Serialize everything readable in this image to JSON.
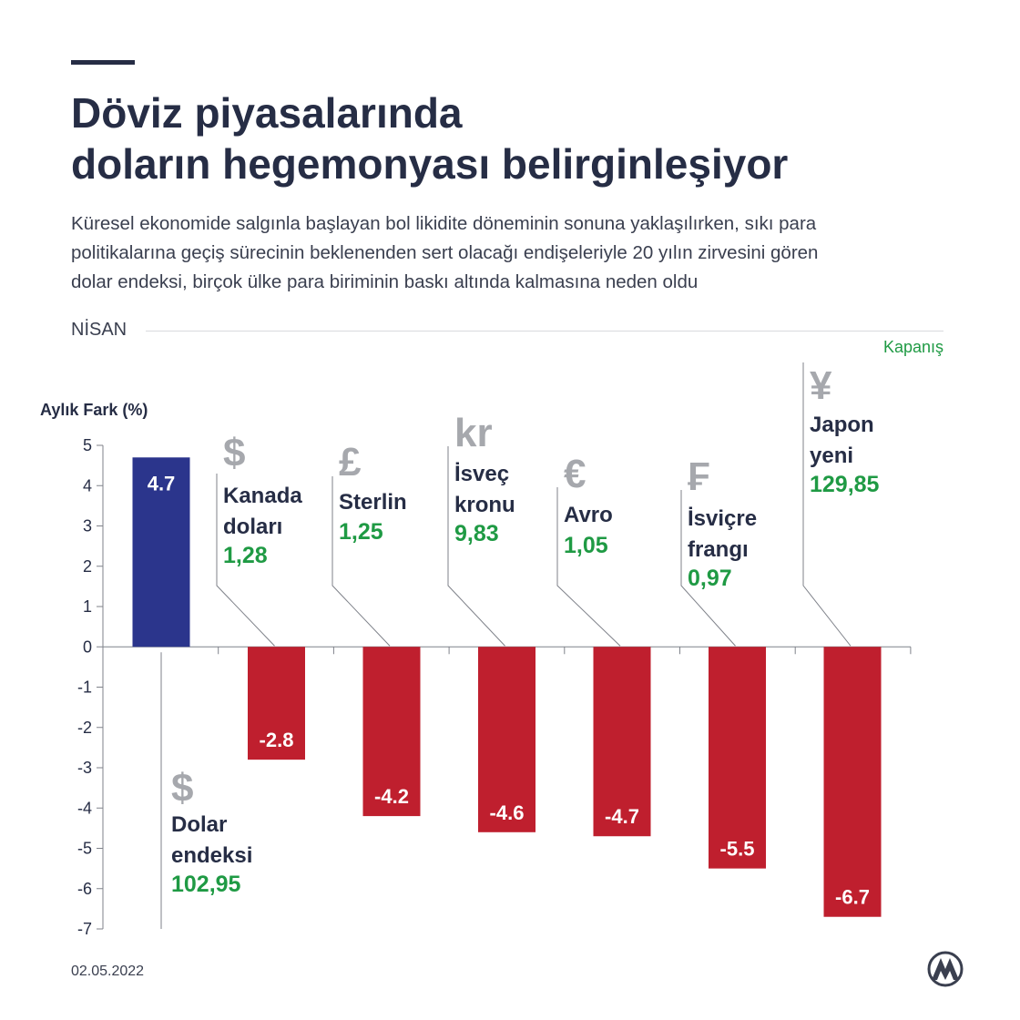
{
  "header": {
    "title_lines": [
      "Döviz piyasalarında",
      "doların hegemonyası belirginleşiyor"
    ],
    "subtitle_lines": [
      "Küresel ekonomide salgınla başlayan bol likidite döneminin sonuna yaklaşılırken, sıkı para",
      "politikalarına geçiş sürecinin beklenenden sert olacağı endişeleriyle 20 yılın zirvesini gören",
      "dolar endeksi, birçok ülke para biriminin baskı altında kalmasına neden oldu"
    ],
    "month": "NİSAN"
  },
  "footer": {
    "date": "02.05.2022",
    "logo_icon": "aa-logo-icon"
  },
  "colors": {
    "positive": "#2b358c",
    "negative": "#bf1f2e",
    "value_text": "#1f9a44",
    "symbol": "#a6a8ad",
    "axis": "#7f828a"
  },
  "chart_data": {
    "type": "bar",
    "title": "Döviz piyasalarında doların hegemonyası belirginleşiyor",
    "ylabel": "Aylık Fark (%)",
    "legend": "Kapanış",
    "ylim": [
      -7,
      5
    ],
    "yticks": [
      "5",
      "4",
      "3",
      "2",
      "1",
      "0",
      "-1",
      "-2",
      "-3",
      "-4",
      "-5",
      "-6",
      "-7"
    ],
    "categories": [
      "Dolar endeksi",
      "Kanada doları",
      "Sterlin",
      "İsveç kronu",
      "Avro",
      "İsviçre frangı",
      "Japon yeni"
    ],
    "values": [
      4.7,
      -2.8,
      -4.2,
      -4.6,
      -4.7,
      -5.5,
      -6.7
    ],
    "bar_labels": [
      "4.7",
      "-2.8",
      "-4.2",
      "-4.6",
      "-4.7",
      "-5.5",
      "-6.7"
    ],
    "items": [
      {
        "symbol": "$",
        "name_lines": [
          "Dolar",
          "endeksi"
        ],
        "close": "102,95"
      },
      {
        "symbol": "$",
        "name_lines": [
          "Kanada",
          "doları"
        ],
        "close": "1,28"
      },
      {
        "symbol": "£",
        "name_lines": [
          "Sterlin"
        ],
        "close": "1,25"
      },
      {
        "symbol": "kr",
        "name_lines": [
          "İsveç",
          "kronu"
        ],
        "close": "9,83"
      },
      {
        "symbol": "€",
        "name_lines": [
          "Avro"
        ],
        "close": "1,05"
      },
      {
        "symbol": "₣",
        "name_lines": [
          "İsviçre",
          "frangı"
        ],
        "close": "0,97"
      },
      {
        "symbol": "¥",
        "name_lines": [
          "Japon",
          "yeni"
        ],
        "close": "129,85"
      }
    ]
  }
}
